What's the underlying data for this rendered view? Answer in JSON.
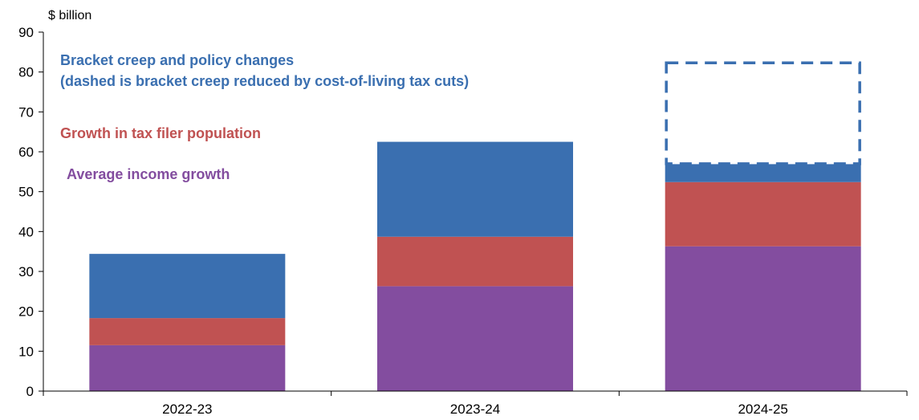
{
  "chart_data": {
    "type": "bar",
    "stacked": true,
    "unit_label": "$ billion",
    "categories": [
      "2022-23",
      "2023-24",
      "2024-25"
    ],
    "yticks": [
      "0",
      "10",
      "20",
      "30",
      "40",
      "50",
      "60",
      "70",
      "80",
      "90"
    ],
    "ylim": [
      0,
      90
    ],
    "grid": false,
    "series": [
      {
        "name": "Average income growth",
        "color": "#834D9F",
        "values": [
          11.5,
          26.3,
          36.3
        ]
      },
      {
        "name": "Growth in tax filer population",
        "color": "#C05252",
        "values": [
          6.8,
          12.4,
          16.1
        ]
      },
      {
        "name": "Bracket creep and policy changes",
        "color": "#3A6FB0",
        "values": [
          16.1,
          23.8,
          4.5
        ]
      }
    ],
    "dashed_segment": {
      "category": "2024-25",
      "from": 57.0,
      "to": 82.3,
      "color": "#3A6FB0"
    },
    "legend": {
      "placement": "top-left",
      "entries": [
        {
          "lines": [
            "Bracket creep and policy changes",
            "(dashed is bracket creep reduced by cost-of-living tax cuts)"
          ],
          "color": "#3A6FB0"
        },
        {
          "lines": [
            "Growth in tax filer population"
          ],
          "color": "#C05252"
        },
        {
          "lines": [
            "Average income growth"
          ],
          "color": "#834D9F"
        }
      ]
    }
  }
}
